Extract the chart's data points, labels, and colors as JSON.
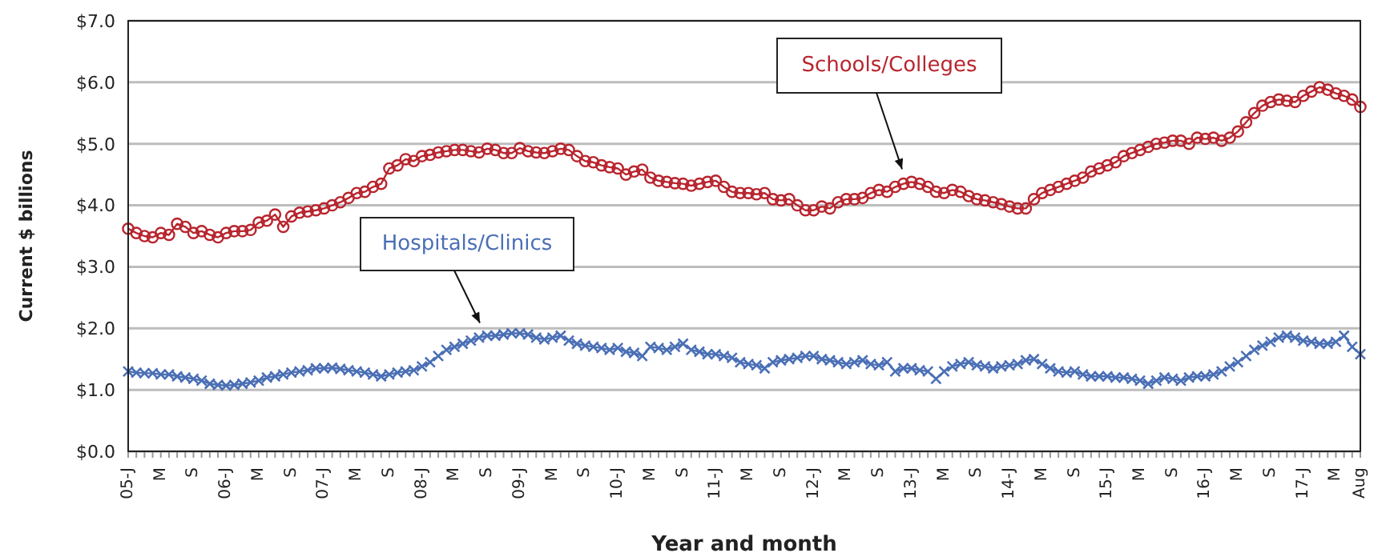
{
  "chart_data": {
    "type": "line",
    "xlabel": "Year and month",
    "ylabel": "Current $ billions",
    "categories": [
      "05-J",
      null,
      null,
      null,
      "M",
      null,
      null,
      null,
      "S",
      null,
      null,
      null,
      "06-J",
      null,
      null,
      null,
      "M",
      null,
      null,
      null,
      "S",
      null,
      null,
      null,
      "07-J",
      null,
      null,
      null,
      "M",
      null,
      null,
      null,
      "S",
      null,
      null,
      null,
      "08-J",
      null,
      null,
      null,
      "M",
      null,
      null,
      null,
      "S",
      null,
      null,
      null,
      "09-J",
      null,
      null,
      null,
      "M",
      null,
      null,
      null,
      "S",
      null,
      null,
      null,
      "10-J",
      null,
      null,
      null,
      "M",
      null,
      null,
      null,
      "S",
      null,
      null,
      null,
      "11-J",
      null,
      null,
      null,
      "M",
      null,
      null,
      null,
      "S",
      null,
      null,
      null,
      "12-J",
      null,
      null,
      null,
      "M",
      null,
      null,
      null,
      "S",
      null,
      null,
      null,
      "13-J",
      null,
      null,
      null,
      "M",
      null,
      null,
      null,
      "S",
      null,
      null,
      null,
      "14-J",
      null,
      null,
      null,
      "M",
      null,
      null,
      null,
      "S",
      null,
      null,
      null,
      "15-J",
      null,
      null,
      null,
      "M",
      null,
      null,
      null,
      "S",
      null,
      null,
      null,
      "16-J",
      null,
      null,
      null,
      "M",
      null,
      null,
      null,
      "S",
      null,
      null,
      null,
      "17-J",
      null,
      null,
      null,
      "M",
      null,
      null,
      "Aug"
    ],
    "series": [
      {
        "name": "Schools/Colleges",
        "color": "#b8252e",
        "marker": "circle",
        "values": [
          3.62,
          3.55,
          3.5,
          3.48,
          3.55,
          3.52,
          3.7,
          3.65,
          3.55,
          3.58,
          3.52,
          3.48,
          3.55,
          3.58,
          3.58,
          3.6,
          3.72,
          3.75,
          3.85,
          3.65,
          3.82,
          3.88,
          3.9,
          3.92,
          3.95,
          4.0,
          4.05,
          4.12,
          4.2,
          4.22,
          4.3,
          4.35,
          4.6,
          4.65,
          4.75,
          4.72,
          4.8,
          4.82,
          4.86,
          4.88,
          4.9,
          4.9,
          4.88,
          4.86,
          4.92,
          4.9,
          4.85,
          4.85,
          4.93,
          4.88,
          4.86,
          4.85,
          4.88,
          4.92,
          4.9,
          4.8,
          4.72,
          4.7,
          4.65,
          4.62,
          4.6,
          4.5,
          4.55,
          4.58,
          4.45,
          4.4,
          4.38,
          4.36,
          4.35,
          4.32,
          4.35,
          4.38,
          4.4,
          4.3,
          4.22,
          4.2,
          4.2,
          4.18,
          4.2,
          4.1,
          4.08,
          4.1,
          4.0,
          3.92,
          3.92,
          3.98,
          3.95,
          4.05,
          4.1,
          4.1,
          4.12,
          4.2,
          4.25,
          4.22,
          4.3,
          4.35,
          4.38,
          4.35,
          4.3,
          4.22,
          4.2,
          4.25,
          4.22,
          4.15,
          4.1,
          4.08,
          4.05,
          4.02,
          3.98,
          3.95,
          3.95,
          4.1,
          4.2,
          4.25,
          4.3,
          4.35,
          4.4,
          4.45,
          4.55,
          4.6,
          4.65,
          4.7,
          4.8,
          4.85,
          4.9,
          4.95,
          5.0,
          5.02,
          5.05,
          5.05,
          5.0,
          5.1,
          5.08,
          5.1,
          5.05,
          5.1,
          5.2,
          5.35,
          5.5,
          5.62,
          5.68,
          5.72,
          5.7,
          5.68,
          5.78,
          5.85,
          5.92,
          5.88,
          5.82,
          5.78,
          5.72,
          5.6
        ]
      },
      {
        "name": "Hospitals/Clinics",
        "color": "#4a6fb5",
        "marker": "cross",
        "values": [
          1.3,
          1.28,
          1.27,
          1.27,
          1.25,
          1.25,
          1.22,
          1.2,
          1.18,
          1.15,
          1.1,
          1.08,
          1.07,
          1.08,
          1.1,
          1.12,
          1.15,
          1.2,
          1.22,
          1.25,
          1.28,
          1.3,
          1.32,
          1.35,
          1.35,
          1.36,
          1.34,
          1.32,
          1.3,
          1.28,
          1.25,
          1.22,
          1.25,
          1.28,
          1.3,
          1.32,
          1.38,
          1.45,
          1.55,
          1.65,
          1.7,
          1.75,
          1.8,
          1.85,
          1.88,
          1.88,
          1.9,
          1.92,
          1.92,
          1.9,
          1.85,
          1.82,
          1.85,
          1.88,
          1.8,
          1.75,
          1.72,
          1.7,
          1.68,
          1.65,
          1.68,
          1.62,
          1.6,
          1.55,
          1.7,
          1.68,
          1.65,
          1.7,
          1.75,
          1.65,
          1.62,
          1.58,
          1.58,
          1.55,
          1.52,
          1.45,
          1.42,
          1.4,
          1.35,
          1.45,
          1.48,
          1.5,
          1.52,
          1.55,
          1.55,
          1.5,
          1.48,
          1.45,
          1.42,
          1.45,
          1.48,
          1.42,
          1.4,
          1.45,
          1.3,
          1.35,
          1.35,
          1.32,
          1.3,
          1.18,
          1.3,
          1.38,
          1.42,
          1.45,
          1.4,
          1.38,
          1.35,
          1.38,
          1.4,
          1.42,
          1.48,
          1.5,
          1.42,
          1.35,
          1.3,
          1.28,
          1.3,
          1.25,
          1.22,
          1.22,
          1.22,
          1.2,
          1.2,
          1.18,
          1.15,
          1.1,
          1.15,
          1.2,
          1.18,
          1.15,
          1.2,
          1.22,
          1.22,
          1.25,
          1.3,
          1.38,
          1.45,
          1.55,
          1.65,
          1.72,
          1.78,
          1.85,
          1.88,
          1.85,
          1.8,
          1.78,
          1.75,
          1.75,
          1.78,
          1.88,
          1.7,
          1.58
        ]
      }
    ],
    "ylim": [
      0,
      7
    ],
    "yticks": [
      {
        "value": 0,
        "label": "$0.0"
      },
      {
        "value": 1,
        "label": "$1.0"
      },
      {
        "value": 2,
        "label": "$2.0"
      },
      {
        "value": 3,
        "label": "$3.0"
      },
      {
        "value": 4,
        "label": "$4.0"
      },
      {
        "value": 5,
        "label": "$5.0"
      },
      {
        "value": 6,
        "label": "$6.0"
      },
      {
        "value": 7,
        "label": "$7.0"
      }
    ],
    "grid": "y",
    "legend": false
  }
}
